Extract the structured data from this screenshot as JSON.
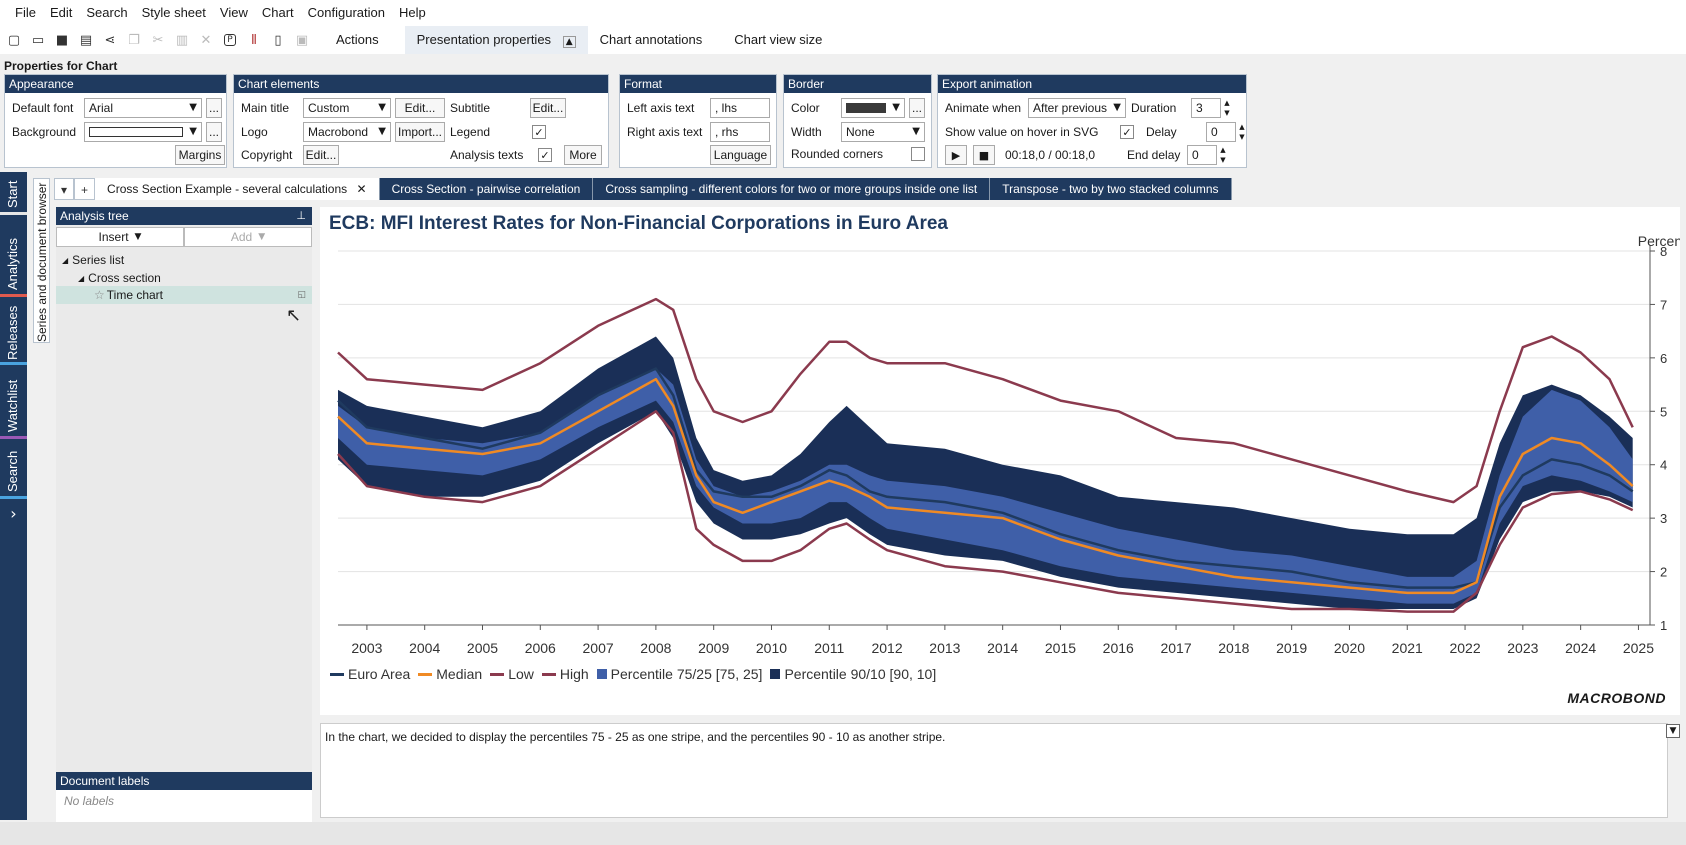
{
  "menu": [
    "File",
    "Edit",
    "Search",
    "Style sheet",
    "View",
    "Chart",
    "Configuration",
    "Help"
  ],
  "toolbar": {
    "icons": [
      "new-document-icon",
      "open-folder-icon",
      "save-icon",
      "print-icon",
      "share-icon",
      "copy-icon",
      "cut-icon",
      "paste-icon",
      "delete-icon",
      "presentation-icon",
      "series-icon",
      "settings-icon",
      "note-icon"
    ],
    "tabs": [
      "Actions",
      "Presentation properties",
      "Chart annotations",
      "Chart view size"
    ]
  },
  "props": {
    "title": "Properties for Chart",
    "appearance": {
      "title": "Appearance",
      "default_font_label": "Default font",
      "default_font_value": "Arial",
      "background_label": "Background",
      "more": "...",
      "margins": "Margins"
    },
    "chart_elements": {
      "title": "Chart elements",
      "main_title_label": "Main title",
      "main_title_value": "Custom",
      "edit": "Edit...",
      "subtitle_label": "Subtitle",
      "logo_label": "Logo",
      "logo_value": "Macrobond",
      "import": "Import...",
      "legend_label": "Legend",
      "copyright_label": "Copyright",
      "analysis_texts_label": "Analysis texts",
      "more": "More",
      "check": "✓"
    },
    "format": {
      "title": "Format",
      "left_axis_label": "Left axis text",
      "left_axis_value": ", lhs",
      "right_axis_label": "Right axis text",
      "right_axis_value": ", rhs",
      "language": "Language"
    },
    "border": {
      "title": "Border",
      "color_label": "Color",
      "color_value": "#3a3a3a",
      "width_label": "Width",
      "width_value": "None",
      "rounded_label": "Rounded corners",
      "more": "..."
    },
    "export": {
      "title": "Export animation",
      "animate_label": "Animate when",
      "animate_value": "After previous",
      "duration_label": "Duration",
      "duration_value": "3",
      "hover_label": "Show value on hover in SVG",
      "delay_label": "Delay",
      "delay_value": "0",
      "time": "00:18,0 / 00:18,0",
      "end_delay_label": "End delay",
      "end_delay_value": "0",
      "check": "✓"
    }
  },
  "vtabs": [
    {
      "label": "Start",
      "color": "#e6e6e6"
    },
    {
      "label": "Analytics",
      "color": "#e05a4e"
    },
    {
      "label": "Releases",
      "color": "#4aa3df"
    },
    {
      "label": "Watchlist",
      "color": "#9b59b6"
    },
    {
      "label": "Search",
      "color": "#4aa3df"
    }
  ],
  "vtab_more": "›",
  "browser_strip": "Series and document browser",
  "doc_tabs": {
    "dropdown": "▾",
    "add": "+",
    "close": "✕",
    "items": [
      "Cross Section Example - several calculations",
      "Cross Section - pairwise correlation",
      "Cross sampling - different colors for two or more groups inside one list",
      "Transpose - two by two stacked columns"
    ]
  },
  "tree": {
    "title": "Analysis tree",
    "insert": "Insert",
    "add": "Add",
    "series_list": "Series list",
    "cross_section": "Cross section",
    "time_chart": "Time chart"
  },
  "doc_labels": {
    "title": "Document labels",
    "none": "No labels"
  },
  "analysis_text": "In the chart, we decided to display the percentiles 75 - 25 as one stripe, and the percentiles 90 - 10 as another stripe.",
  "brand": "MACROBOND",
  "chart_data": {
    "type": "line",
    "title": "ECB: MFI Interest Rates for Non-Financial Corporations in Euro Area",
    "ylabel": "Percent",
    "ylim": [
      1,
      8
    ],
    "yticks": [
      1,
      2,
      3,
      4,
      5,
      6,
      7,
      8
    ],
    "xlim": [
      2002.5,
      2025.2
    ],
    "xticks": [
      "2003",
      "2004",
      "2005",
      "2006",
      "2007",
      "2008",
      "2009",
      "2010",
      "2011",
      "2012",
      "2013",
      "2014",
      "2015",
      "2016",
      "2017",
      "2018",
      "2019",
      "2020",
      "2021",
      "2022",
      "2023",
      "2024",
      "2025"
    ],
    "colors": {
      "euro_area": "#1f3a5f",
      "median": "#f08a24",
      "low": "#8b3a4e",
      "high": "#8b3a4e",
      "p75_25": "#3f5fa8",
      "p90_10": "#1a2f57"
    },
    "x": [
      2002.5,
      2003,
      2004,
      2005,
      2006,
      2007,
      2008,
      2008.3,
      2008.7,
      2009,
      2009.5,
      2010,
      2010.5,
      2011,
      2011.3,
      2011.7,
      2012,
      2013,
      2014,
      2015,
      2016,
      2017,
      2018,
      2019,
      2020,
      2021,
      2021.8,
      2022.2,
      2022.6,
      2023,
      2023.5,
      2024,
      2024.5,
      2024.9
    ],
    "series": [
      {
        "name": "High",
        "values": [
          6.1,
          5.6,
          5.5,
          5.4,
          5.9,
          6.6,
          7.1,
          6.9,
          5.6,
          5.0,
          4.8,
          5.0,
          5.7,
          6.3,
          6.3,
          6.0,
          5.9,
          5.9,
          5.6,
          5.2,
          5.0,
          4.5,
          4.4,
          4.1,
          3.8,
          3.5,
          3.3,
          3.6,
          5.0,
          6.2,
          6.4,
          6.1,
          5.6,
          4.7
        ]
      },
      {
        "name": "Percentile 90/10 upper",
        "values": [
          5.4,
          5.1,
          4.9,
          4.7,
          5.0,
          5.8,
          6.4,
          6.0,
          4.5,
          3.9,
          3.7,
          3.8,
          4.2,
          4.8,
          5.1,
          4.7,
          4.4,
          4.3,
          4.0,
          3.8,
          3.4,
          3.3,
          3.2,
          3.0,
          2.8,
          2.7,
          2.7,
          3.0,
          4.4,
          5.3,
          5.5,
          5.3,
          4.9,
          4.5
        ]
      },
      {
        "name": "Percentile 75/25 upper",
        "values": [
          5.1,
          4.7,
          4.5,
          4.4,
          4.6,
          5.3,
          5.8,
          5.5,
          4.1,
          3.6,
          3.4,
          3.5,
          3.7,
          4.0,
          4.0,
          3.8,
          3.7,
          3.6,
          3.4,
          3.1,
          2.8,
          2.6,
          2.4,
          2.3,
          2.1,
          1.9,
          1.9,
          2.2,
          3.8,
          4.9,
          5.4,
          5.2,
          4.7,
          4.1
        ]
      },
      {
        "name": "Euro Area",
        "values": [
          5.2,
          4.7,
          4.5,
          4.3,
          4.6,
          5.3,
          5.8,
          5.3,
          3.9,
          3.5,
          3.4,
          3.4,
          3.6,
          3.9,
          3.8,
          3.5,
          3.4,
          3.3,
          3.1,
          2.7,
          2.4,
          2.2,
          2.1,
          2.0,
          1.8,
          1.7,
          1.7,
          1.8,
          3.2,
          3.8,
          4.1,
          4.0,
          3.8,
          3.5
        ]
      },
      {
        "name": "Median",
        "values": [
          4.9,
          4.4,
          4.3,
          4.2,
          4.4,
          5.0,
          5.6,
          5.1,
          3.8,
          3.3,
          3.1,
          3.3,
          3.5,
          3.7,
          3.6,
          3.4,
          3.2,
          3.1,
          3.0,
          2.6,
          2.3,
          2.1,
          1.9,
          1.8,
          1.7,
          1.6,
          1.6,
          1.8,
          3.4,
          4.2,
          4.5,
          4.4,
          4.0,
          3.6
        ]
      },
      {
        "name": "Percentile 75/25 lower",
        "values": [
          4.5,
          4.0,
          3.9,
          3.8,
          4.1,
          4.7,
          5.2,
          4.8,
          3.6,
          3.2,
          2.9,
          2.9,
          3.0,
          3.3,
          3.3,
          3.0,
          2.8,
          2.6,
          2.4,
          2.1,
          1.9,
          1.8,
          1.7,
          1.6,
          1.5,
          1.4,
          1.4,
          1.6,
          2.9,
          3.6,
          3.8,
          3.7,
          3.5,
          3.3
        ]
      },
      {
        "name": "Percentile 90/10 lower",
        "values": [
          4.1,
          3.6,
          3.4,
          3.4,
          3.7,
          4.4,
          5.0,
          4.5,
          3.3,
          2.9,
          2.6,
          2.6,
          2.7,
          2.9,
          3.0,
          2.7,
          2.5,
          2.3,
          2.2,
          1.9,
          1.7,
          1.6,
          1.5,
          1.4,
          1.3,
          1.3,
          1.3,
          1.5,
          2.6,
          3.3,
          3.5,
          3.5,
          3.4,
          3.2
        ]
      },
      {
        "name": "Low",
        "values": [
          4.2,
          3.6,
          3.4,
          3.3,
          3.6,
          4.3,
          5.0,
          4.6,
          2.8,
          2.5,
          2.2,
          2.2,
          2.4,
          2.8,
          2.9,
          2.6,
          2.4,
          2.1,
          2.0,
          1.8,
          1.6,
          1.5,
          1.4,
          1.3,
          1.3,
          1.25,
          1.25,
          1.6,
          2.5,
          3.2,
          3.45,
          3.5,
          3.35,
          3.15
        ]
      }
    ],
    "legend": [
      {
        "label": "Euro Area",
        "kind": "line",
        "color": "#1f3a5f"
      },
      {
        "label": "Median",
        "kind": "line",
        "color": "#f08a24"
      },
      {
        "label": "Low",
        "kind": "line",
        "color": "#8b3a4e"
      },
      {
        "label": "High",
        "kind": "line",
        "color": "#8b3a4e"
      },
      {
        "label": "Percentile 75/25 [75, 25]",
        "kind": "box",
        "color": "#3f5fa8"
      },
      {
        "label": "Percentile 90/10 [90, 10]",
        "kind": "box",
        "color": "#1a2f57"
      }
    ]
  }
}
